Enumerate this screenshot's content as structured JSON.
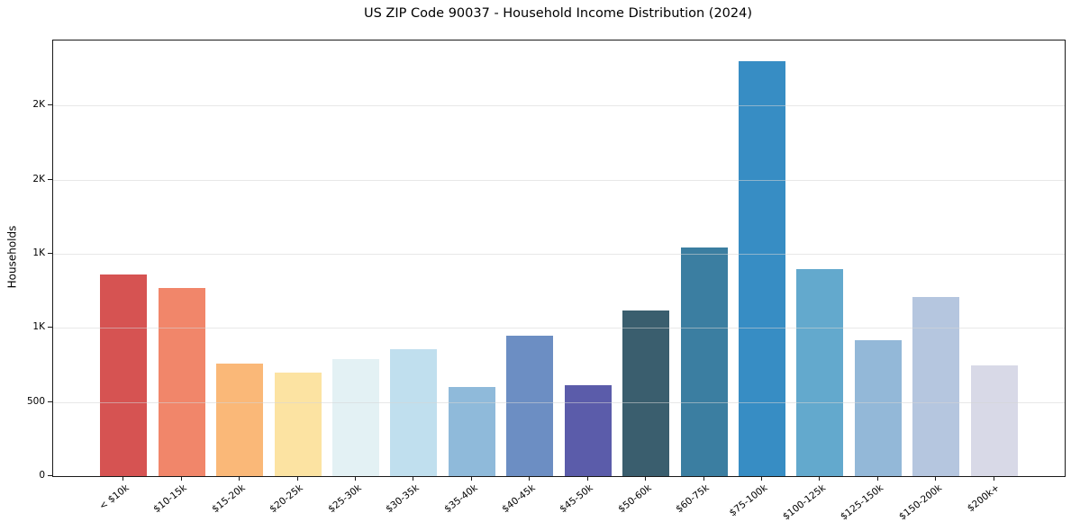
{
  "chart_data": {
    "type": "bar",
    "title": "US ZIP Code 90037 - Household Income Distribution (2024)",
    "xlabel": "",
    "ylabel": "Households",
    "categories": [
      "< $10k",
      "$10-15k",
      "$15-20k",
      "$20-25k",
      "$25-30k",
      "$30-35k",
      "$35-40k",
      "$40-45k",
      "$45-50k",
      "$50-60k",
      "$60-75k",
      "$75-100k",
      "$100-125k",
      "$125-150k",
      "$150-200k",
      "$200k+"
    ],
    "values": [
      1360,
      1270,
      760,
      700,
      790,
      855,
      600,
      950,
      615,
      1120,
      1540,
      2800,
      1400,
      915,
      1210,
      745
    ],
    "bar_colors": [
      "#d65352",
      "#f1866a",
      "#fab878",
      "#fce3a2",
      "#e3f1f4",
      "#c0dfee",
      "#8fbada",
      "#6c8ec3",
      "#5b5caa",
      "#3a5e6e",
      "#3b7ea1",
      "#378dc4",
      "#63a9cd",
      "#93b8d8",
      "#b5c6df",
      "#d8d9e7"
    ],
    "ylim": [
      0,
      2940
    ],
    "yticks": [
      {
        "value": 0,
        "label": "0"
      },
      {
        "value": 500,
        "label": "500"
      },
      {
        "value": 1000,
        "label": "1K"
      },
      {
        "value": 1500,
        "label": "1K"
      },
      {
        "value": 2000,
        "label": "2K"
      },
      {
        "value": 2500,
        "label": "2K"
      }
    ],
    "grid": "horizontal",
    "legend": "none",
    "x_tick_rotation_deg": 38,
    "spine_color": "#1a1a1a",
    "gridline_color": "#e8e8e8"
  }
}
